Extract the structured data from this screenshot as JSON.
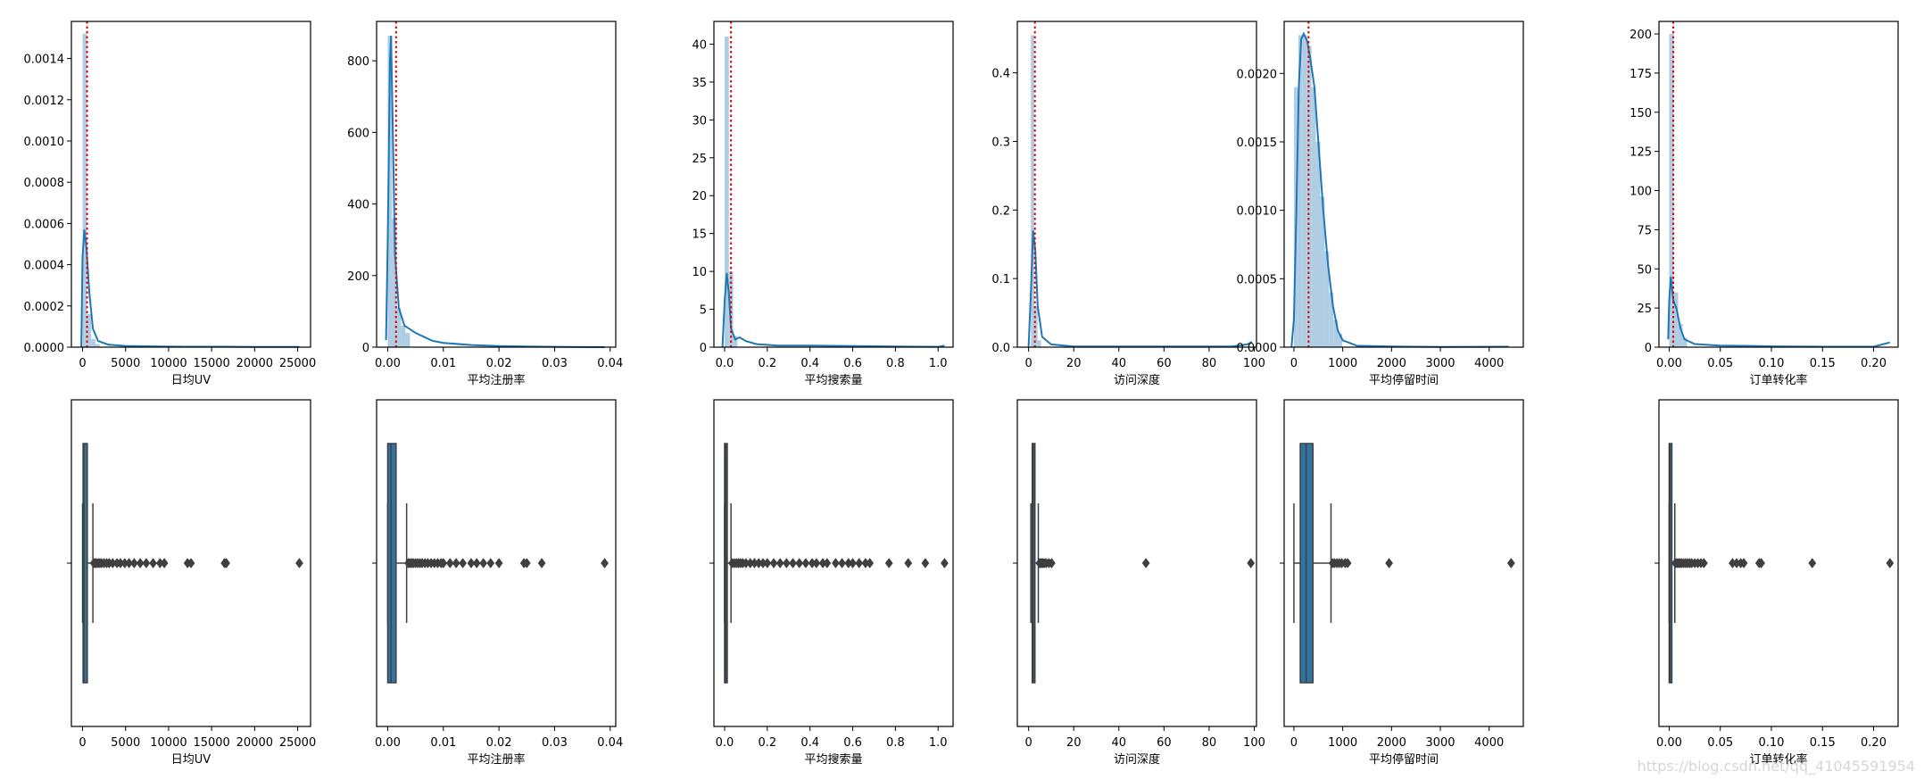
{
  "colors": {
    "hist_fill": "#a6c8e0",
    "kde_line": "#1f77b4",
    "box_fill": "#3274a1",
    "box_line": "#3f3f3f",
    "mean_line": "#e00000",
    "axis": "#000000"
  },
  "watermark": "https://blog.csdn.net/qq_41045591954",
  "chart_data": [
    {
      "type": "histogram",
      "xlabel": "日均UV",
      "xlim": [
        -1300,
        26500
      ],
      "ylim": [
        0,
        0.00158
      ],
      "xticks": [
        0,
        5000,
        10000,
        15000,
        20000,
        25000
      ],
      "xtick_labels": [
        "0",
        "5000",
        "10000",
        "15000",
        "20000",
        "25000"
      ],
      "yticks": [
        0,
        0.0002,
        0.0004,
        0.0006,
        0.0008,
        0.001,
        0.0012,
        0.0014
      ],
      "ytick_labels": [
        "0.0000",
        "0.0002",
        "0.0004",
        "0.0006",
        "0.0008",
        "0.0010",
        "0.0012",
        "0.0014"
      ],
      "mean_line_x": 520,
      "bins": [
        {
          "x0": 0,
          "x1": 500,
          "y": 0.00152
        },
        {
          "x0": 500,
          "x1": 1000,
          "y": 0.00016
        },
        {
          "x0": 1000,
          "x1": 1500,
          "y": 4e-05
        },
        {
          "x0": 1500,
          "x1": 2000,
          "y": 1.5e-05
        }
      ],
      "kde": [
        [
          -150,
          0
        ],
        [
          0,
          0.00044
        ],
        [
          200,
          0.00057
        ],
        [
          450,
          0.00048
        ],
        [
          800,
          0.00026
        ],
        [
          1200,
          9e-05
        ],
        [
          1800,
          3e-05
        ],
        [
          3000,
          1.2e-05
        ],
        [
          5000,
          6e-06
        ],
        [
          8000,
          4e-06
        ],
        [
          12000,
          2e-06
        ],
        [
          16500,
          2e-06
        ],
        [
          20000,
          1e-06
        ],
        [
          25200,
          1e-06
        ]
      ]
    },
    {
      "type": "histogram",
      "xlabel": "平均注册率",
      "xlim": [
        -0.002,
        0.041
      ],
      "ylim": [
        0,
        910
      ],
      "xticks": [
        0,
        0.01,
        0.02,
        0.03,
        0.04
      ],
      "xtick_labels": [
        "0.00",
        "0.01",
        "0.02",
        "0.03",
        "0.04"
      ],
      "yticks": [
        0,
        200,
        400,
        600,
        800
      ],
      "ytick_labels": [
        "0",
        "200",
        "400",
        "600",
        "800"
      ],
      "mean_line_x": 0.0015,
      "bins": [
        {
          "x0": 0,
          "x1": 0.0008,
          "y": 870
        },
        {
          "x0": 0.0008,
          "x1": 0.0016,
          "y": 360
        },
        {
          "x0": 0.0016,
          "x1": 0.0024,
          "y": 110
        },
        {
          "x0": 0.0024,
          "x1": 0.0032,
          "y": 60
        },
        {
          "x0": 0.0032,
          "x1": 0.004,
          "y": 40
        }
      ],
      "kde": [
        [
          -0.0003,
          20
        ],
        [
          0,
          300
        ],
        [
          0.0004,
          800
        ],
        [
          0.0006,
          870
        ],
        [
          0.0009,
          620
        ],
        [
          0.0013,
          260
        ],
        [
          0.002,
          110
        ],
        [
          0.003,
          60
        ],
        [
          0.005,
          40
        ],
        [
          0.008,
          18
        ],
        [
          0.01,
          12
        ],
        [
          0.015,
          6
        ],
        [
          0.02,
          3
        ],
        [
          0.025,
          2
        ],
        [
          0.03,
          1
        ],
        [
          0.039,
          0
        ]
      ]
    },
    {
      "type": "histogram",
      "xlabel": "平均搜索量",
      "xlim": [
        -0.05,
        1.07
      ],
      "ylim": [
        0,
        43
      ],
      "xticks": [
        0,
        0.2,
        0.4,
        0.6,
        0.8,
        1.0
      ],
      "xtick_labels": [
        "0.0",
        "0.2",
        "0.4",
        "0.6",
        "0.8",
        "1.0"
      ],
      "yticks": [
        0,
        5,
        10,
        15,
        20,
        25,
        30,
        35,
        40
      ],
      "ytick_labels": [
        "0",
        "5",
        "10",
        "15",
        "20",
        "25",
        "30",
        "35",
        "40"
      ],
      "mean_line_x": 0.03,
      "bins": [
        {
          "x0": 0,
          "x1": 0.02,
          "y": 41
        },
        {
          "x0": 0.02,
          "x1": 0.04,
          "y": 10
        },
        {
          "x0": 0.04,
          "x1": 0.06,
          "y": 1.5
        }
      ],
      "kde": [
        [
          -0.01,
          0
        ],
        [
          0,
          6
        ],
        [
          0.01,
          9.8
        ],
        [
          0.02,
          7
        ],
        [
          0.03,
          2.5
        ],
        [
          0.05,
          1
        ],
        [
          0.07,
          1.3
        ],
        [
          0.1,
          0.8
        ],
        [
          0.15,
          0.4
        ],
        [
          0.25,
          0.2
        ],
        [
          0.4,
          0.2
        ],
        [
          0.6,
          0.15
        ],
        [
          0.8,
          0.08
        ],
        [
          1.0,
          0.05
        ],
        [
          1.03,
          0.2
        ]
      ]
    },
    {
      "type": "histogram",
      "xlabel": "访问深度",
      "xlim": [
        -5,
        101
      ],
      "ylim": [
        0,
        0.475
      ],
      "xticks": [
        0,
        20,
        40,
        60,
        80,
        100
      ],
      "xtick_labels": [
        "0",
        "20",
        "40",
        "60",
        "80",
        "100"
      ],
      "yticks": [
        0,
        0.1,
        0.2,
        0.3,
        0.4
      ],
      "ytick_labels": [
        "0.0",
        "0.1",
        "0.2",
        "0.3",
        "0.4"
      ],
      "mean_line_x": 2.8,
      "bins": [
        {
          "x0": 1,
          "x1": 2.5,
          "y": 0.455
        },
        {
          "x0": 2.5,
          "x1": 4,
          "y": 0.06
        },
        {
          "x0": 4,
          "x1": 5.5,
          "y": 0.01
        }
      ],
      "kde": [
        [
          0,
          0
        ],
        [
          1,
          0.08
        ],
        [
          2,
          0.17
        ],
        [
          3,
          0.14
        ],
        [
          4,
          0.06
        ],
        [
          6,
          0.015
        ],
        [
          10,
          0.004
        ],
        [
          20,
          0.001
        ],
        [
          50,
          0.001
        ],
        [
          90,
          0.001
        ],
        [
          97,
          0.004
        ],
        [
          99,
          0.008
        ]
      ]
    },
    {
      "type": "histogram",
      "xlabel": "平均停留时间",
      "xlim": [
        -200,
        4700
      ],
      "ylim": [
        0,
        0.00238
      ],
      "xticks": [
        0,
        1000,
        2000,
        3000,
        4000
      ],
      "xtick_labels": [
        "0",
        "1000",
        "2000",
        "3000",
        "4000"
      ],
      "yticks": [
        0,
        0.0005,
        0.001,
        0.0015,
        0.002
      ],
      "ytick_labels": [
        "0.0000",
        "0.0005",
        "0.0010",
        "0.0015",
        "0.0020"
      ],
      "mean_line_x": 300,
      "bins": [
        {
          "x0": 0,
          "x1": 90,
          "y": 0.0019
        },
        {
          "x0": 90,
          "x1": 180,
          "y": 0.00228
        },
        {
          "x0": 180,
          "x1": 270,
          "y": 0.00228
        },
        {
          "x0": 270,
          "x1": 360,
          "y": 0.0022
        },
        {
          "x0": 360,
          "x1": 450,
          "y": 0.0019
        },
        {
          "x0": 450,
          "x1": 540,
          "y": 0.0015
        },
        {
          "x0": 540,
          "x1": 630,
          "y": 0.0011
        },
        {
          "x0": 630,
          "x1": 720,
          "y": 0.0007
        },
        {
          "x0": 720,
          "x1": 810,
          "y": 0.0004
        },
        {
          "x0": 810,
          "x1": 900,
          "y": 0.0002
        },
        {
          "x0": 900,
          "x1": 990,
          "y": 0.0001
        }
      ],
      "kde": [
        [
          -50,
          0
        ],
        [
          0,
          0.0002
        ],
        [
          50,
          0.001
        ],
        [
          100,
          0.0019
        ],
        [
          150,
          0.00225
        ],
        [
          200,
          0.00229
        ],
        [
          270,
          0.00224
        ],
        [
          340,
          0.0021
        ],
        [
          420,
          0.0019
        ],
        [
          500,
          0.0015
        ],
        [
          600,
          0.001
        ],
        [
          700,
          0.0006
        ],
        [
          800,
          0.0003
        ],
        [
          900,
          0.00012
        ],
        [
          1000,
          5e-05
        ],
        [
          1300,
          1e-05
        ],
        [
          2000,
          5e-06
        ],
        [
          3000,
          2e-06
        ],
        [
          4400,
          3e-06
        ]
      ]
    },
    {
      "type": "histogram",
      "xlabel": "订单转化率",
      "xlim": [
        -0.01,
        0.224
      ],
      "ylim": [
        0,
        208
      ],
      "xticks": [
        0,
        0.05,
        0.1,
        0.15,
        0.2
      ],
      "xtick_labels": [
        "0.00",
        "0.05",
        "0.10",
        "0.15",
        "0.20"
      ],
      "yticks": [
        0,
        25,
        50,
        75,
        100,
        125,
        150,
        175,
        200
      ],
      "ytick_labels": [
        "0",
        "25",
        "50",
        "75",
        "100",
        "125",
        "150",
        "175",
        "200"
      ],
      "mean_line_x": 0.004,
      "bins": [
        {
          "x0": 0,
          "x1": 0.0044,
          "y": 200
        },
        {
          "x0": 0.0044,
          "x1": 0.0088,
          "y": 35
        },
        {
          "x0": 0.0088,
          "x1": 0.0132,
          "y": 15
        },
        {
          "x0": 0.0132,
          "x1": 0.0176,
          "y": 6
        }
      ],
      "kde": [
        [
          -0.001,
          5
        ],
        [
          0,
          30
        ],
        [
          0.0015,
          45
        ],
        [
          0.004,
          30
        ],
        [
          0.007,
          25
        ],
        [
          0.011,
          12
        ],
        [
          0.015,
          5
        ],
        [
          0.025,
          2
        ],
        [
          0.05,
          1
        ],
        [
          0.08,
          0.8
        ],
        [
          0.1,
          0.5
        ],
        [
          0.15,
          0.3
        ],
        [
          0.2,
          0.3
        ],
        [
          0.216,
          3
        ]
      ]
    },
    {
      "type": "box",
      "xlabel": "日均UV",
      "xlim": [
        -1300,
        26500
      ],
      "xticks": [
        0,
        5000,
        10000,
        15000,
        20000,
        25000
      ],
      "xtick_labels": [
        "0",
        "5000",
        "10000",
        "15000",
        "20000",
        "25000"
      ],
      "q1": 60,
      "median": 150,
      "q3": 550,
      "whisker_low": 0,
      "whisker_high": 1200,
      "outliers": [
        1300,
        1450,
        1600,
        1800,
        2000,
        2200,
        2500,
        2800,
        3100,
        3500,
        4000,
        4400,
        4900,
        5400,
        6000,
        6700,
        7400,
        8200,
        9000,
        9500,
        12200,
        12600,
        16500,
        16700,
        25200
      ]
    },
    {
      "type": "box",
      "xlabel": "平均注册率",
      "xlim": [
        -0.002,
        0.041
      ],
      "xticks": [
        0,
        0.01,
        0.02,
        0.03,
        0.04
      ],
      "xtick_labels": [
        "0.00",
        "0.01",
        "0.02",
        "0.03",
        "0.04"
      ],
      "q1": 0,
      "median": 0.0006,
      "q3": 0.0015,
      "whisker_low": 0,
      "whisker_high": 0.0034,
      "outliers": [
        0.0037,
        0.004,
        0.0043,
        0.0046,
        0.005,
        0.0054,
        0.0058,
        0.0062,
        0.0067,
        0.0072,
        0.0078,
        0.0084,
        0.009,
        0.0096,
        0.01,
        0.0112,
        0.0123,
        0.0135,
        0.015,
        0.016,
        0.0172,
        0.0185,
        0.02,
        0.0245,
        0.025,
        0.0277,
        0.039
      ]
    },
    {
      "type": "box",
      "xlabel": "平均搜索量",
      "xlim": [
        -0.05,
        1.07
      ],
      "xticks": [
        0,
        0.2,
        0.4,
        0.6,
        0.8,
        1.0
      ],
      "xtick_labels": [
        "0.0",
        "0.2",
        "0.4",
        "0.6",
        "0.8",
        "1.0"
      ],
      "q1": 0,
      "median": 0.005,
      "q3": 0.012,
      "whisker_low": 0,
      "whisker_high": 0.03,
      "outliers": [
        0.035,
        0.045,
        0.055,
        0.065,
        0.075,
        0.085,
        0.1,
        0.12,
        0.14,
        0.16,
        0.18,
        0.2,
        0.23,
        0.26,
        0.29,
        0.32,
        0.35,
        0.38,
        0.41,
        0.43,
        0.46,
        0.48,
        0.52,
        0.55,
        0.58,
        0.6,
        0.63,
        0.66,
        0.68,
        0.77,
        0.86,
        0.94,
        1.03
      ]
    },
    {
      "type": "box",
      "xlabel": "访问深度",
      "xlim": [
        -5,
        101
      ],
      "xticks": [
        0,
        20,
        40,
        60,
        80,
        100
      ],
      "xtick_labels": [
        "0",
        "20",
        "40",
        "60",
        "80",
        "100"
      ],
      "q1": 1.6,
      "median": 2.0,
      "q3": 2.8,
      "whisker_low": 1.0,
      "whisker_high": 4.3,
      "outliers": [
        4.8,
        5.3,
        5.8,
        6.3,
        7.0,
        7.8,
        9.0,
        10.2,
        52,
        98.5
      ]
    },
    {
      "type": "box",
      "xlabel": "平均停留时间",
      "xlim": [
        -200,
        4700
      ],
      "xticks": [
        0,
        1000,
        2000,
        3000,
        4000
      ],
      "xtick_labels": [
        "0",
        "1000",
        "2000",
        "3000",
        "4000"
      ],
      "q1": 130,
      "median": 250,
      "q3": 390,
      "whisker_low": 0,
      "whisker_high": 760,
      "outliers": [
        790,
        830,
        880,
        930,
        980,
        1050,
        1100,
        1950,
        4450
      ]
    },
    {
      "type": "box",
      "xlabel": "订单转化率",
      "xlim": [
        -0.01,
        0.224
      ],
      "xticks": [
        0,
        0.05,
        0.1,
        0.15,
        0.2
      ],
      "xtick_labels": [
        "0.00",
        "0.05",
        "0.10",
        "0.15",
        "0.20"
      ],
      "q1": 0,
      "median": 0.0007,
      "q3": 0.0023,
      "whisker_low": 0,
      "whisker_high": 0.0055,
      "outliers": [
        0.006,
        0.0075,
        0.009,
        0.0105,
        0.012,
        0.014,
        0.016,
        0.018,
        0.02,
        0.022,
        0.025,
        0.028,
        0.031,
        0.034,
        0.062,
        0.066,
        0.07,
        0.073,
        0.088,
        0.09,
        0.14,
        0.216
      ]
    }
  ]
}
